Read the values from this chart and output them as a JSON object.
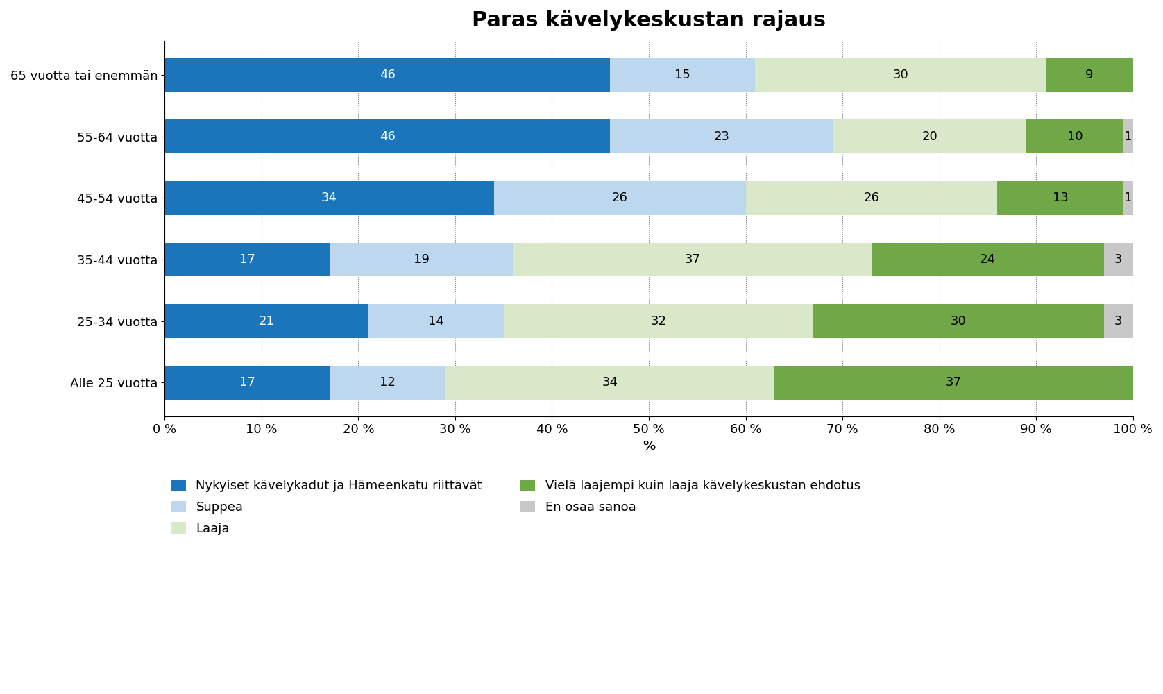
{
  "title": "Paras kävelykeskustan rajaus",
  "categories": [
    "65 vuotta tai enemmän",
    "55-64 vuotta",
    "45-54 vuotta",
    "35-44 vuotta",
    "25-34 vuotta",
    "Alle 25 vuotta"
  ],
  "series": [
    {
      "name": "Nykyiset kävelykadut ja Hämeenkatu riittävät",
      "color": "#1B75BB",
      "values": [
        46,
        46,
        34,
        17,
        21,
        17
      ],
      "text_color": "white"
    },
    {
      "name": "Suppea",
      "color": "#BDD7EE",
      "values": [
        15,
        23,
        26,
        19,
        14,
        12
      ],
      "text_color": "black"
    },
    {
      "name": "Laaja",
      "color": "#D9E8C8",
      "values": [
        30,
        20,
        26,
        37,
        32,
        34
      ],
      "text_color": "black"
    },
    {
      "name": "Vielä laajempi kuin laaja kävelykeskustan ehdotus",
      "color": "#70A847",
      "values": [
        9,
        10,
        13,
        24,
        30,
        37
      ],
      "text_color": "black"
    },
    {
      "name": "En osaa sanoa",
      "color": "#C8C8C8",
      "values": [
        0,
        1,
        1,
        3,
        3,
        0
      ],
      "text_color": "black"
    }
  ],
  "legend_order": [
    0,
    1,
    2,
    3,
    4
  ],
  "legend_ncol": 2,
  "xlabel": "%",
  "xlim": [
    0,
    100
  ],
  "xticks": [
    0,
    10,
    20,
    30,
    40,
    50,
    60,
    70,
    80,
    90,
    100
  ],
  "xtick_labels": [
    "0 %",
    "10 %",
    "20 %",
    "30 %",
    "40 %",
    "50 %",
    "60 %",
    "70 %",
    "80 %",
    "90 %",
    "100 %"
  ],
  "background_color": "#FFFFFF",
  "bar_height": 0.55,
  "title_fontsize": 22,
  "label_fontsize": 13,
  "tick_fontsize": 13,
  "legend_fontsize": 13,
  "value_fontsize": 13
}
